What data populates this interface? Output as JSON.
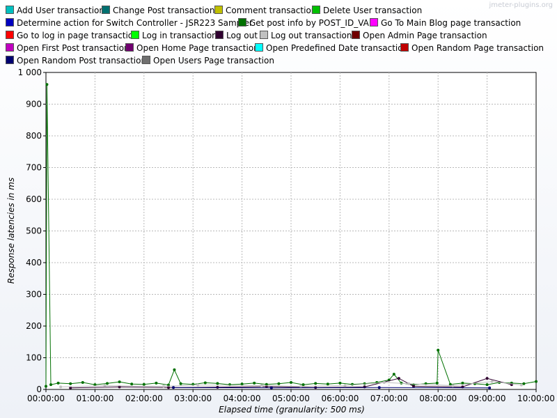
{
  "watermark": "jmeter-plugins.org",
  "chart_data": {
    "type": "scatter",
    "title": "",
    "xlabel": "Elapsed time (granularity: 500 ms)",
    "ylabel": "Response latencies in ms",
    "ylim": [
      0,
      1000
    ],
    "xlim_hours": [
      0,
      10
    ],
    "grid": true,
    "legend_placement": "top",
    "y_ticks": [
      "0",
      "100",
      "200",
      "300",
      "400",
      "500",
      "600",
      "700",
      "800",
      "900",
      "1 000"
    ],
    "x_ticks": [
      "00:00:00",
      "01:00:00",
      "02:00:00",
      "03:00:00",
      "04:00:00",
      "05:00:00",
      "06:00:00",
      "07:00:00",
      "08:00:00",
      "09:00:00",
      "10:00:00"
    ],
    "legend": [
      {
        "name": "Add User transaction",
        "color": "#00c0c0"
      },
      {
        "name": "Change Post transaction",
        "color": "#007070"
      },
      {
        "name": "Comment transaction",
        "color": "#c0c000"
      },
      {
        "name": "Delete User transaction",
        "color": "#00c000"
      },
      {
        "name": "Determine action for Switch Controller - JSR223 Sampler",
        "color": "#0000c0"
      },
      {
        "name": "Get post info by POST_ID_VAL",
        "color": "#007000"
      },
      {
        "name": "Go To Main Blog page transaction",
        "color": "#ff00ff"
      },
      {
        "name": "Go to log in page transaction",
        "color": "#ff0000"
      },
      {
        "name": "Log in transaction",
        "color": "#00ff00"
      },
      {
        "name": "Log out",
        "color": "#300030"
      },
      {
        "name": "Log out transaction",
        "color": "#c0c0c0"
      },
      {
        "name": "Open Admin Page transaction",
        "color": "#700000"
      },
      {
        "name": "Open First Post transaction",
        "color": "#c000c0"
      },
      {
        "name": "Open Home Page transaction",
        "color": "#700070"
      },
      {
        "name": "Open Predefined Date transaction",
        "color": "#00ffff"
      },
      {
        "name": "Open Random Page transaction",
        "color": "#c00000"
      },
      {
        "name": "Open Random Post transaction",
        "color": "#000070"
      },
      {
        "name": "Open Users Page transaction",
        "color": "#707070"
      }
    ],
    "series": [
      {
        "name": "Get post info by POST_ID_VAL",
        "color": "#007000",
        "x": [
          0.0,
          0.02,
          0.1,
          0.25,
          0.5,
          0.75,
          1.0,
          1.25,
          1.5,
          1.75,
          2.0,
          2.25,
          2.5,
          2.62,
          2.75,
          3.0,
          3.25,
          3.5,
          3.75,
          4.0,
          4.25,
          4.5,
          4.75,
          5.0,
          5.25,
          5.5,
          5.75,
          6.0,
          6.25,
          6.5,
          6.75,
          7.0,
          7.1,
          7.25,
          7.5,
          7.75,
          7.98,
          8.0,
          8.25,
          8.5,
          8.75,
          9.0,
          9.25,
          9.5,
          9.75,
          10.0
        ],
        "y": [
          10,
          962,
          15,
          20,
          18,
          22,
          15,
          19,
          24,
          17,
          16,
          20,
          14,
          62,
          18,
          16,
          21,
          19,
          15,
          17,
          20,
          16,
          18,
          22,
          15,
          19,
          17,
          20,
          16,
          18,
          22,
          30,
          48,
          20,
          15,
          18,
          20,
          124,
          16,
          20,
          18,
          15,
          22,
          20,
          18,
          25
        ]
      },
      {
        "name": "Log out",
        "color": "#300030",
        "x": [
          0.5,
          1.5,
          2.5,
          3.5,
          4.5,
          5.5,
          6.5,
          7.2,
          7.5,
          8.5,
          9.0,
          9.5
        ],
        "y": [
          5,
          8,
          6,
          7,
          9,
          6,
          8,
          35,
          10,
          8,
          35,
          15
        ]
      },
      {
        "name": "Log out transaction",
        "color": "#c0c0c0",
        "x": [
          0.3,
          1.2,
          2.4,
          3.1,
          4.4,
          5.2,
          6.1,
          6.9,
          7.4,
          8.3,
          9.1,
          9.7
        ],
        "y": [
          8,
          12,
          10,
          14,
          12,
          10,
          12,
          22,
          18,
          12,
          25,
          14
        ]
      },
      {
        "name": "Open Random Post transaction",
        "color": "#000070",
        "x": [
          2.6,
          4.6,
          6.8,
          9.05
        ],
        "y": [
          6,
          5,
          6,
          5
        ]
      }
    ]
  }
}
